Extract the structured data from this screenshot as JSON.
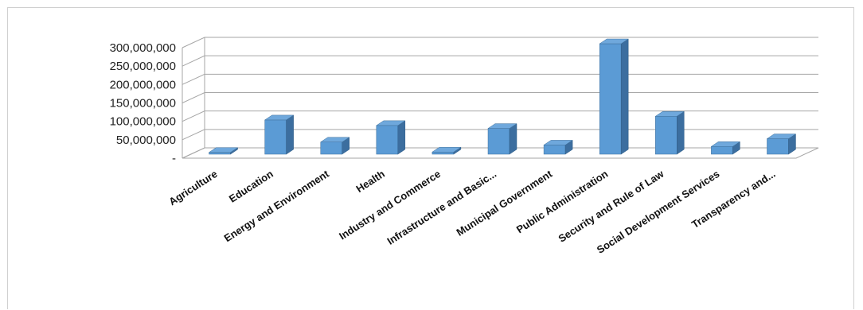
{
  "chart_data": {
    "type": "bar",
    "title": "",
    "xlabel": "",
    "ylabel": "",
    "ylim": [
      0,
      300000000
    ],
    "ytick_values": [
      0,
      50000000,
      100000000,
      150000000,
      200000000,
      250000000,
      300000000
    ],
    "ytick_labels": [
      "-",
      "50,000,000",
      "100,000,000",
      "150,000,000",
      "200,000,000",
      "250,000,000",
      "300,000,000"
    ],
    "grid": true,
    "legend": "none",
    "bar_color": "#5b9bd5",
    "categories": [
      "Agriculture",
      "Education",
      "Energy and Environment",
      "Health",
      "Industry and Commerce",
      "Infrastructure and Basic...",
      "Municipal Government",
      "Public Administration",
      "Security and Rule of Law",
      "Social Development Services",
      "Transparency and..."
    ],
    "values": [
      5000000,
      93000000,
      33000000,
      78000000,
      6000000,
      70000000,
      25000000,
      300000000,
      103000000,
      21000000,
      42000000
    ]
  }
}
